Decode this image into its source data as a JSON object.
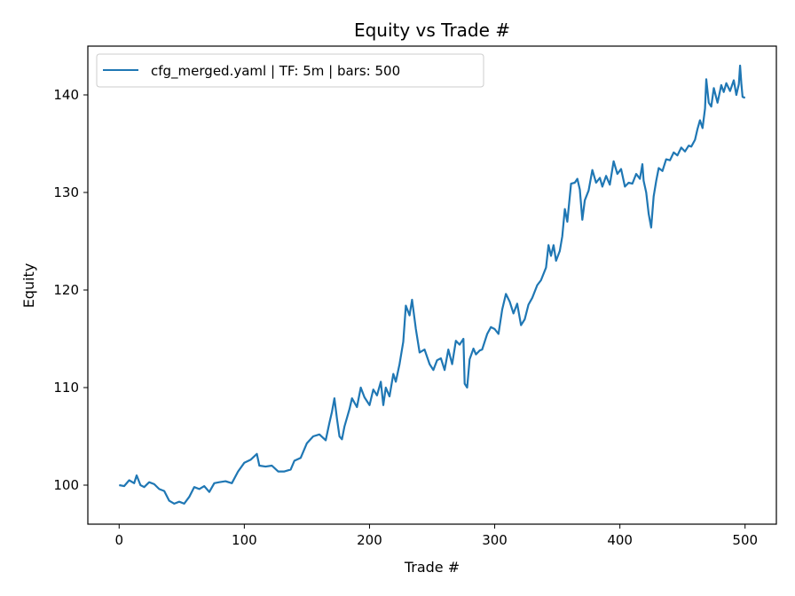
{
  "chart_data": {
    "type": "line",
    "title": "Equity vs Trade #",
    "xlabel": "Trade #",
    "ylabel": "Equity",
    "xlim": [
      -25,
      525
    ],
    "ylim": [
      96,
      145
    ],
    "xticks": [
      0,
      100,
      200,
      300,
      400,
      500
    ],
    "yticks": [
      100,
      110,
      120,
      130,
      140
    ],
    "grid": false,
    "legend_position": "top-left",
    "series": [
      {
        "name": "cfg_merged.yaml | TF: 5m | bars: 500",
        "color": "#1f77b4",
        "points": [
          [
            0,
            100.0
          ],
          [
            4,
            99.9
          ],
          [
            8,
            100.5
          ],
          [
            12,
            100.2
          ],
          [
            14,
            101.0
          ],
          [
            17,
            100.0
          ],
          [
            20,
            99.8
          ],
          [
            24,
            100.3
          ],
          [
            28,
            100.1
          ],
          [
            32,
            99.6
          ],
          [
            36,
            99.4
          ],
          [
            40,
            98.4
          ],
          [
            44,
            98.1
          ],
          [
            48,
            98.3
          ],
          [
            52,
            98.1
          ],
          [
            56,
            98.8
          ],
          [
            60,
            99.8
          ],
          [
            64,
            99.6
          ],
          [
            68,
            99.9
          ],
          [
            72,
            99.3
          ],
          [
            76,
            100.2
          ],
          [
            80,
            100.3
          ],
          [
            85,
            100.4
          ],
          [
            90,
            100.2
          ],
          [
            95,
            101.4
          ],
          [
            100,
            102.3
          ],
          [
            105,
            102.6
          ],
          [
            110,
            103.2
          ],
          [
            112,
            102.0
          ],
          [
            117,
            101.9
          ],
          [
            122,
            102.0
          ],
          [
            127,
            101.4
          ],
          [
            132,
            101.4
          ],
          [
            137,
            101.6
          ],
          [
            140,
            102.5
          ],
          [
            145,
            102.8
          ],
          [
            150,
            104.3
          ],
          [
            155,
            105.0
          ],
          [
            160,
            105.2
          ],
          [
            165,
            104.6
          ],
          [
            168,
            106.4
          ],
          [
            170,
            107.5
          ],
          [
            172,
            108.9
          ],
          [
            174,
            106.8
          ],
          [
            176,
            105.0
          ],
          [
            178,
            104.7
          ],
          [
            180,
            106.0
          ],
          [
            184,
            107.8
          ],
          [
            186,
            108.9
          ],
          [
            190,
            108.0
          ],
          [
            193,
            110.0
          ],
          [
            196,
            109.0
          ],
          [
            200,
            108.2
          ],
          [
            203,
            109.8
          ],
          [
            206,
            109.2
          ],
          [
            209,
            110.6
          ],
          [
            211,
            108.2
          ],
          [
            213,
            110.0
          ],
          [
            216,
            109.1
          ],
          [
            219,
            111.4
          ],
          [
            221,
            110.6
          ],
          [
            224,
            112.4
          ],
          [
            227,
            114.7
          ],
          [
            229,
            118.4
          ],
          [
            232,
            117.4
          ],
          [
            234,
            119.0
          ],
          [
            237,
            116.0
          ],
          [
            240,
            113.6
          ],
          [
            244,
            113.9
          ],
          [
            248,
            112.4
          ],
          [
            251,
            111.8
          ],
          [
            254,
            112.8
          ],
          [
            257,
            113.0
          ],
          [
            260,
            111.8
          ],
          [
            263,
            113.9
          ],
          [
            266,
            112.4
          ],
          [
            269,
            114.8
          ],
          [
            272,
            114.4
          ],
          [
            275,
            115.0
          ],
          [
            276,
            110.4
          ],
          [
            278,
            110.0
          ],
          [
            280,
            112.9
          ],
          [
            283,
            114.0
          ],
          [
            285,
            113.4
          ],
          [
            288,
            113.8
          ],
          [
            290,
            113.9
          ],
          [
            294,
            115.5
          ],
          [
            297,
            116.2
          ],
          [
            300,
            116.0
          ],
          [
            303,
            115.5
          ],
          [
            306,
            118.0
          ],
          [
            309,
            119.6
          ],
          [
            312,
            118.8
          ],
          [
            315,
            117.6
          ],
          [
            318,
            118.6
          ],
          [
            321,
            116.4
          ],
          [
            324,
            117.0
          ],
          [
            327,
            118.5
          ],
          [
            330,
            119.2
          ],
          [
            334,
            120.5
          ],
          [
            337,
            121.0
          ],
          [
            341,
            122.3
          ],
          [
            343,
            124.6
          ],
          [
            345,
            123.5
          ],
          [
            347,
            124.6
          ],
          [
            349,
            123.0
          ],
          [
            352,
            124.0
          ],
          [
            354,
            125.5
          ],
          [
            356,
            128.3
          ],
          [
            358,
            127.0
          ],
          [
            361,
            130.9
          ],
          [
            364,
            131.0
          ],
          [
            366,
            131.4
          ],
          [
            368,
            130.3
          ],
          [
            370,
            127.2
          ],
          [
            372,
            129.2
          ],
          [
            375,
            130.2
          ],
          [
            378,
            132.3
          ],
          [
            381,
            131.0
          ],
          [
            384,
            131.5
          ],
          [
            386,
            130.6
          ],
          [
            389,
            131.7
          ],
          [
            392,
            130.8
          ],
          [
            395,
            133.2
          ],
          [
            398,
            131.9
          ],
          [
            401,
            132.4
          ],
          [
            404,
            130.6
          ],
          [
            407,
            131.0
          ],
          [
            410,
            130.9
          ],
          [
            413,
            131.9
          ],
          [
            416,
            131.4
          ],
          [
            418,
            132.9
          ],
          [
            419,
            131.2
          ],
          [
            421,
            130.0
          ],
          [
            423,
            127.8
          ],
          [
            425,
            126.4
          ],
          [
            427,
            129.6
          ],
          [
            429,
            131.2
          ],
          [
            431,
            132.5
          ],
          [
            434,
            132.2
          ],
          [
            437,
            133.4
          ],
          [
            440,
            133.3
          ],
          [
            443,
            134.1
          ],
          [
            446,
            133.8
          ],
          [
            449,
            134.6
          ],
          [
            452,
            134.2
          ],
          [
            455,
            134.8
          ],
          [
            457,
            134.7
          ],
          [
            460,
            135.4
          ],
          [
            462,
            136.5
          ],
          [
            464,
            137.4
          ],
          [
            466,
            136.6
          ],
          [
            468,
            138.6
          ],
          [
            469,
            141.6
          ],
          [
            471,
            139.2
          ],
          [
            473,
            138.8
          ],
          [
            475,
            140.7
          ],
          [
            478,
            139.2
          ],
          [
            481,
            141.0
          ],
          [
            483,
            140.3
          ],
          [
            485,
            141.2
          ],
          [
            488,
            140.4
          ],
          [
            491,
            141.5
          ],
          [
            493,
            140.0
          ],
          [
            495,
            141.1
          ],
          [
            496,
            143.0
          ],
          [
            497,
            141.2
          ],
          [
            498,
            139.8
          ],
          [
            500,
            139.7
          ]
        ]
      }
    ]
  }
}
